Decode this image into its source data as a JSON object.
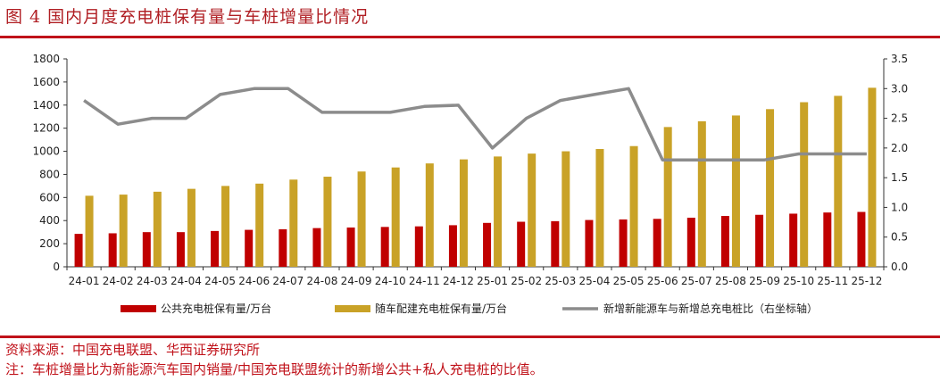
{
  "header": {
    "title": "图 4  国内月度充电桩保有量与车桩增量比情况"
  },
  "footer": {
    "source": "资料来源：中国充电联盟、华西证券研究所",
    "note": "注：车桩增量比为新能源汽车国内销量/中国充电联盟统计的新增公共+私人充电桩的比值。"
  },
  "colors": {
    "series1": "#c00000",
    "series2": "#c9a227",
    "series3": "#8c8c8c",
    "accent": "#c0121a"
  },
  "chart_data": {
    "type": "bar",
    "categories": [
      "24-01",
      "24-02",
      "24-03",
      "24-04",
      "24-05",
      "24-06",
      "24-07",
      "24-08",
      "24-09",
      "24-10",
      "24-11",
      "24-12",
      "25-01",
      "25-02",
      "25-03",
      "25-04",
      "25-05",
      "25-06",
      "25-07",
      "25-08",
      "25-09",
      "25-10",
      "25-11",
      "25-12"
    ],
    "ylim": [
      0,
      1800
    ],
    "yticks": [
      "0",
      "200",
      "400",
      "600",
      "800",
      "1000",
      "1200",
      "1400",
      "1600",
      "1800"
    ],
    "y2lim": [
      0,
      3.5
    ],
    "y2ticks": [
      "0.0",
      "0.5",
      "1.0",
      "1.5",
      "2.0",
      "2.5",
      "3.0",
      "3.5"
    ],
    "legend_position": "bottom",
    "series": [
      {
        "name": "公共充电桩保有量/万台",
        "type": "bar",
        "axis": "left",
        "values": [
          285,
          290,
          300,
          300,
          310,
          320,
          325,
          335,
          340,
          345,
          350,
          360,
          380,
          390,
          395,
          405,
          410,
          415,
          425,
          440,
          450,
          460,
          470,
          475
        ]
      },
      {
        "name": "随车配建充电桩保有量/万台",
        "type": "bar",
        "axis": "left",
        "values": [
          615,
          625,
          650,
          675,
          700,
          720,
          755,
          780,
          825,
          860,
          895,
          930,
          955,
          980,
          1000,
          1020,
          1045,
          1210,
          1260,
          1310,
          1365,
          1425,
          1480,
          1550
        ]
      },
      {
        "name": "新增新能源车与新增总充电桩比（右坐标轴）",
        "type": "line",
        "axis": "right",
        "values": [
          2.8,
          2.4,
          2.5,
          2.5,
          2.9,
          3.0,
          3.0,
          2.6,
          2.6,
          2.6,
          2.7,
          2.72,
          2.0,
          2.5,
          2.8,
          2.9,
          3.0,
          1.8,
          1.8,
          1.8,
          1.8,
          1.9,
          1.9,
          1.9
        ]
      }
    ]
  }
}
